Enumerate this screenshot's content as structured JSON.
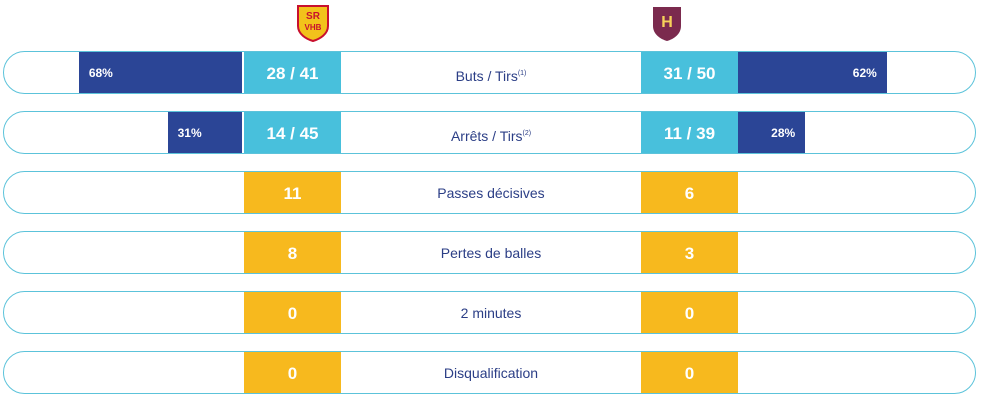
{
  "teams": {
    "home": {
      "logo_text": "SR VHB",
      "colors": {
        "bg": "#f2c21b",
        "fg": "#c8102e"
      }
    },
    "away": {
      "logo_text": "H",
      "colors": {
        "bg": "#7b2a4e",
        "fg": "#f7d25a"
      }
    }
  },
  "colors": {
    "percent_bar": "#2b4596",
    "stat_blue": "#48c0dc",
    "stat_gold": "#f7b91e",
    "border": "#5cc3da",
    "label": "#2b3e86"
  },
  "stats": [
    {
      "label": "Buts / Tirs",
      "note": "(1)",
      "home": {
        "value": "28 / 41",
        "percent": "68%",
        "ratio": 0.68
      },
      "away": {
        "value": "31 / 50",
        "percent": "62%",
        "ratio": 0.62
      },
      "style": "blue"
    },
    {
      "label": "Arrêts / Tirs",
      "note": "(2)",
      "home": {
        "value": "14 / 45",
        "percent": "31%",
        "ratio": 0.31
      },
      "away": {
        "value": "11 / 39",
        "percent": "28%",
        "ratio": 0.28
      },
      "style": "blue"
    },
    {
      "label": "Passes décisives",
      "note": "",
      "home": {
        "value": "11"
      },
      "away": {
        "value": "6"
      },
      "style": "gold"
    },
    {
      "label": "Pertes de balles",
      "note": "",
      "home": {
        "value": "8"
      },
      "away": {
        "value": "3"
      },
      "style": "gold"
    },
    {
      "label": "2 minutes",
      "note": "",
      "home": {
        "value": "0"
      },
      "away": {
        "value": "0"
      },
      "style": "gold"
    },
    {
      "label": "Disqualification",
      "note": "",
      "home": {
        "value": "0"
      },
      "away": {
        "value": "0"
      },
      "style": "gold"
    }
  ]
}
